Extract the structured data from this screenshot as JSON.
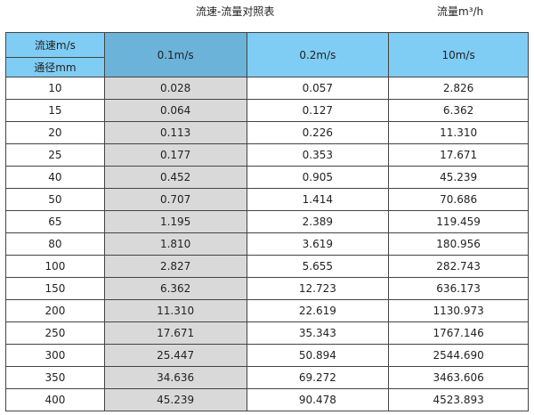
{
  "title": "流速-流量对照表",
  "unit": "流量m³/h",
  "header": {
    "speed_label": "流速m/s",
    "diameter_label": "通径mm",
    "columns": [
      "0.1m/s",
      "0.2m/s",
      "10m/s"
    ]
  },
  "colors": {
    "header": "#7fcdf4",
    "selected_header": "#6cb3da",
    "shaded_column": "#d9d9d9"
  },
  "rows": [
    [
      "10",
      "0.028",
      "0.057",
      "2.826"
    ],
    [
      "15",
      "0.064",
      "0.127",
      "6.362"
    ],
    [
      "20",
      "0.113",
      "0.226",
      "11.310"
    ],
    [
      "25",
      "0.177",
      "0.353",
      "17.671"
    ],
    [
      "40",
      "0.452",
      "0.905",
      "45.239"
    ],
    [
      "50",
      "0.707",
      "1.414",
      "70.686"
    ],
    [
      "65",
      "1.195",
      "2.389",
      "119.459"
    ],
    [
      "80",
      "1.810",
      "3.619",
      "180.956"
    ],
    [
      "100",
      "2.827",
      "5.655",
      "282.743"
    ],
    [
      "150",
      "6.362",
      "12.723",
      "636.173"
    ],
    [
      "200",
      "11.310",
      "22.619",
      "1130.973"
    ],
    [
      "250",
      "17.671",
      "35.343",
      "1767.146"
    ],
    [
      "300",
      "25.447",
      "50.894",
      "2544.690"
    ],
    [
      "350",
      "34.636",
      "69.272",
      "3463.606"
    ],
    [
      "400",
      "45.239",
      "90.478",
      "4523.893"
    ]
  ]
}
